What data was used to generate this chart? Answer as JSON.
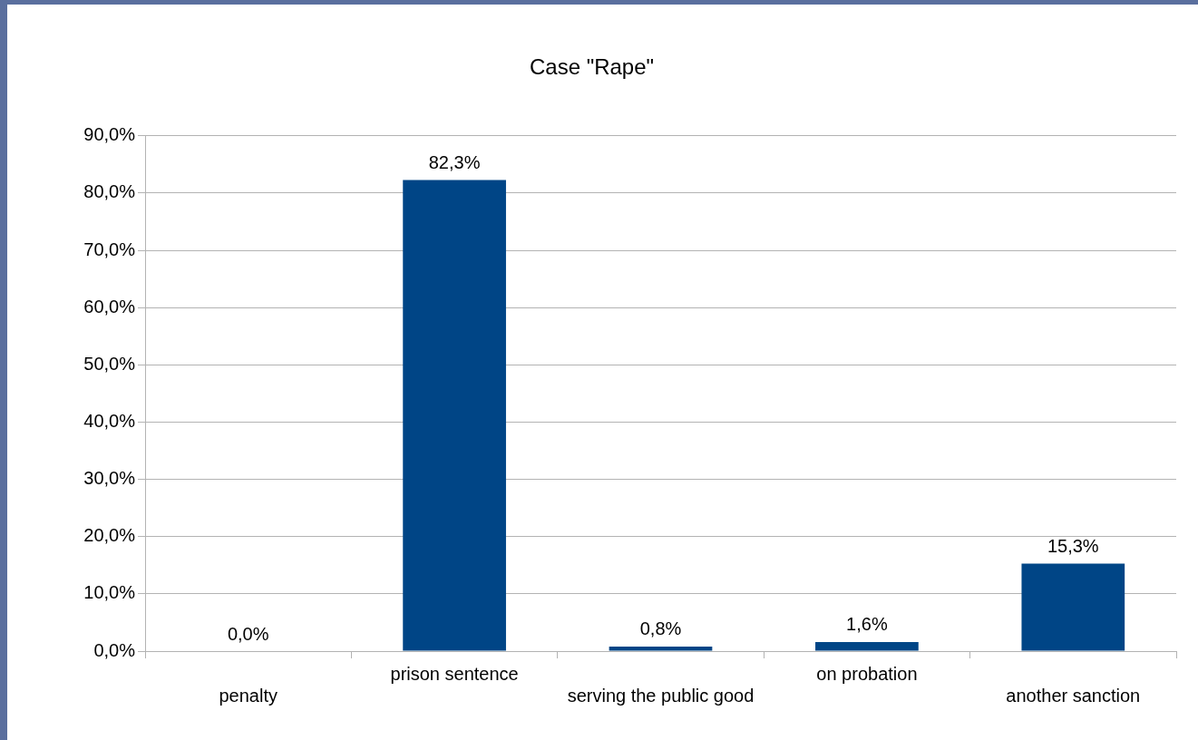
{
  "chart_data": {
    "type": "bar",
    "title": "Case \"Rape\"",
    "categories": [
      "penalty",
      "prison sentence",
      "serving the public good",
      "on probation",
      "another sanction"
    ],
    "values": [
      0,
      82.3,
      0.8,
      1.6,
      15.3
    ],
    "value_labels": [
      "0,0%",
      "82,3%",
      "0,8%",
      "1,6%",
      "15,3%"
    ],
    "color": "#004586",
    "ylim": [
      0,
      90
    ],
    "yticks": [
      {
        "value": 0,
        "label": "0,0%"
      },
      {
        "value": 10,
        "label": "10,0%"
      },
      {
        "value": 20,
        "label": "20,0%"
      },
      {
        "value": 30,
        "label": "30,0%"
      },
      {
        "value": 40,
        "label": "40,0%"
      },
      {
        "value": 50,
        "label": "50,0%"
      },
      {
        "value": 60,
        "label": "60,0%"
      },
      {
        "value": 70,
        "label": "70,0%"
      },
      {
        "value": 80,
        "label": "80,0%"
      },
      {
        "value": 90,
        "label": "90,0%"
      }
    ],
    "grid": "y",
    "legend": false
  }
}
